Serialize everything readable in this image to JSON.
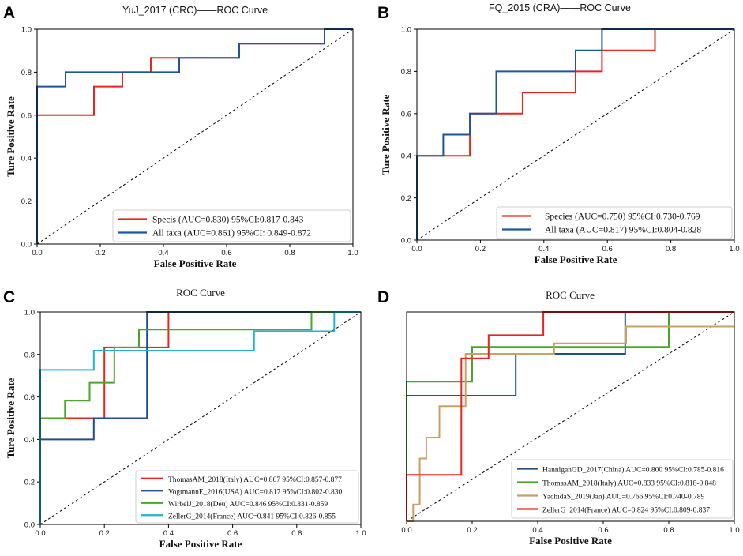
{
  "chart_data": [
    {
      "panel": "A",
      "type": "line",
      "title": "YuJ_2017 (CRC)——ROC Curve",
      "xlabel": "False Positive Rate",
      "ylabel": "Ture Positive Rate",
      "xlim": [
        0,
        1
      ],
      "ylim": [
        0,
        1
      ],
      "xticks": [
        "0.0",
        "0.2",
        "0.4",
        "0.6",
        "0.8",
        "1.0"
      ],
      "yticks": [
        "0.0",
        "0.2",
        "0.4",
        "0.6",
        "0.8",
        "1.0"
      ],
      "legend_position": "lower-right",
      "series": [
        {
          "name": "Specis (AUC=0.830) 95%CI:0.817-0.843",
          "color": "#e8251f",
          "x": [
            0,
            0,
            0.18,
            0.18,
            0.27,
            0.27,
            0.36,
            0.36,
            0.45,
            0.45,
            0.64,
            0.64,
            0.91,
            0.91,
            1.0
          ],
          "y": [
            0,
            0.6,
            0.6,
            0.733,
            0.733,
            0.8,
            0.8,
            0.867,
            0.867,
            0.867,
            0.867,
            0.933,
            0.933,
            1.0,
            1.0
          ]
        },
        {
          "name": "All taxa (AUC=0.861) 95%CI: 0.849-0.872",
          "color": "#1f55a0",
          "x": [
            0,
            0,
            0.09,
            0.09,
            0.45,
            0.45,
            0.64,
            0.64,
            0.91,
            0.91,
            1.0
          ],
          "y": [
            0,
            0.733,
            0.733,
            0.8,
            0.8,
            0.867,
            0.867,
            0.933,
            0.933,
            1.0,
            1.0
          ]
        }
      ]
    },
    {
      "panel": "B",
      "type": "line",
      "title": "FQ_2015 (CRA)——ROC Curve",
      "xlabel": "False Positive Rate",
      "ylabel": "Ture Positive Rate",
      "xlim": [
        0,
        1
      ],
      "ylim": [
        0,
        1
      ],
      "xticks": [
        "0.0",
        "0.2",
        "0.4",
        "0.6",
        "0.8",
        "1.0"
      ],
      "yticks": [
        "0.0",
        "0.2",
        "0.4",
        "0.6",
        "0.8",
        "1.0"
      ],
      "legend_position": "lower-right",
      "series": [
        {
          "name": "Species (AUC=0.750) 95%CI:0.730-0.769",
          "color": "#e8251f",
          "x": [
            0,
            0,
            0.083,
            0.083,
            0.167,
            0.167,
            0.333,
            0.333,
            0.5,
            0.5,
            0.583,
            0.583,
            0.75,
            0.75,
            1.0
          ],
          "y": [
            0,
            0.4,
            0.4,
            0.4,
            0.4,
            0.6,
            0.6,
            0.7,
            0.7,
            0.8,
            0.8,
            0.9,
            0.9,
            1.0,
            1.0
          ]
        },
        {
          "name": "All taxa (AUC=0.817) 95%CI:0.804-0.828",
          "color": "#1f55a0",
          "x": [
            0,
            0,
            0.083,
            0.083,
            0.167,
            0.167,
            0.25,
            0.25,
            0.5,
            0.5,
            0.583,
            0.583,
            1.0
          ],
          "y": [
            0,
            0.4,
            0.4,
            0.5,
            0.5,
            0.6,
            0.6,
            0.8,
            0.8,
            0.9,
            0.9,
            1.0,
            1.0
          ]
        }
      ]
    },
    {
      "panel": "C",
      "type": "line",
      "title": "ROC Curve",
      "xlabel": "False Positive Rate",
      "ylabel": "Ture Positive Rate",
      "xlim": [
        0,
        1
      ],
      "ylim": [
        0,
        1
      ],
      "xticks": [
        "0.0",
        "0.2",
        "0.4",
        "0.6",
        "0.8",
        "1.0"
      ],
      "yticks": [
        "0.0",
        "0.2",
        "0.4",
        "0.6",
        "0.8",
        "1.0"
      ],
      "legend_position": "lower-right",
      "series": [
        {
          "name": "ThomasAM_2018(Italy) AUC=0.867 95%CI:0.857-0.877",
          "color": "#e8251f",
          "x": [
            0,
            0,
            0.2,
            0.2,
            0.333,
            0.333,
            0.4,
            0.4,
            1.0
          ],
          "y": [
            0,
            0.5,
            0.5,
            0.833,
            0.833,
            0.833,
            0.833,
            1.0,
            1.0
          ]
        },
        {
          "name": "VogtmannE_2016(USA) AUC=0.817 95%CI:0.802-0.830",
          "color": "#1f4e8c",
          "x": [
            0,
            0,
            0.167,
            0.167,
            0.333,
            0.333,
            0.833,
            0.833,
            1.0
          ],
          "y": [
            0,
            0.4,
            0.4,
            0.5,
            0.5,
            1.0,
            1.0,
            1.0,
            1.0
          ]
        },
        {
          "name": "WirbelJ_2018(Deu) AUC=0.846 95%CI:0.831-0.859",
          "color": "#4aa62a",
          "x": [
            0,
            0,
            0.077,
            0.077,
            0.154,
            0.154,
            0.231,
            0.231,
            0.308,
            0.308,
            0.846,
            0.846,
            1.0
          ],
          "y": [
            0,
            0.5,
            0.5,
            0.583,
            0.583,
            0.667,
            0.667,
            0.833,
            0.833,
            0.917,
            0.917,
            1.0,
            1.0
          ]
        },
        {
          "name": "ZellerG_2014(France) AUC=0.841 95%CI:0.826-0.855",
          "color": "#22b2d6",
          "x": [
            0,
            0,
            0.167,
            0.167,
            0.667,
            0.667,
            0.917,
            0.917,
            1.0
          ],
          "y": [
            0,
            0.727,
            0.727,
            0.818,
            0.818,
            0.909,
            0.909,
            1.0,
            1.0
          ]
        }
      ]
    },
    {
      "panel": "D",
      "type": "line",
      "title": "ROC Curve",
      "xlabel": "False Positive Rate",
      "ylabel": "",
      "xlim": [
        0,
        1
      ],
      "ylim": [
        0,
        1
      ],
      "xticks": [
        "0.0",
        "0.2",
        "0.4",
        "0.6",
        "0.8",
        "1.0"
      ],
      "yticks": [],
      "legend_position": "lower-right",
      "series": [
        {
          "name": "HanniganGD_2017(China) AUC=0.800 95%CI:0.785-0.816",
          "color": "#1f4e8c",
          "x": [
            0,
            0,
            0.333,
            0.333,
            0.667,
            0.667,
            1.0
          ],
          "y": [
            0,
            0.6,
            0.6,
            0.8,
            0.8,
            1.0,
            1.0
          ]
        },
        {
          "name": "ThomasAM_2018(Italy) AUC=0.833 95%CI:0.818-0.848",
          "color": "#4aa62a",
          "x": [
            0,
            0,
            0.2,
            0.2,
            0.8,
            0.8,
            1.0
          ],
          "y": [
            0,
            0.667,
            0.667,
            0.833,
            0.833,
            1.0,
            1.0
          ]
        },
        {
          "name": "YachidaS_2019(Jan) AUC=0.766 95%CI:0.740-0.789",
          "color": "#c8a064",
          "x": [
            0,
            0.02,
            0.02,
            0.04,
            0.04,
            0.06,
            0.06,
            0.1,
            0.1,
            0.18,
            0.18,
            0.45,
            0.45,
            0.67,
            0.67,
            1.0
          ],
          "y": [
            0,
            0,
            0.08,
            0.08,
            0.3,
            0.3,
            0.4,
            0.4,
            0.55,
            0.55,
            0.8,
            0.8,
            0.85,
            0.85,
            0.93,
            0.93
          ]
        },
        {
          "name": "ZellerG_2014(France) AUC=0.824 95%CI:0.809-0.837",
          "color": "#e8251f",
          "x": [
            0,
            0,
            0.167,
            0.167,
            0.25,
            0.25,
            0.417,
            0.417,
            1.0
          ],
          "y": [
            0,
            0.222,
            0.222,
            0.778,
            0.778,
            0.889,
            0.889,
            1.0,
            1.0
          ]
        }
      ]
    }
  ]
}
